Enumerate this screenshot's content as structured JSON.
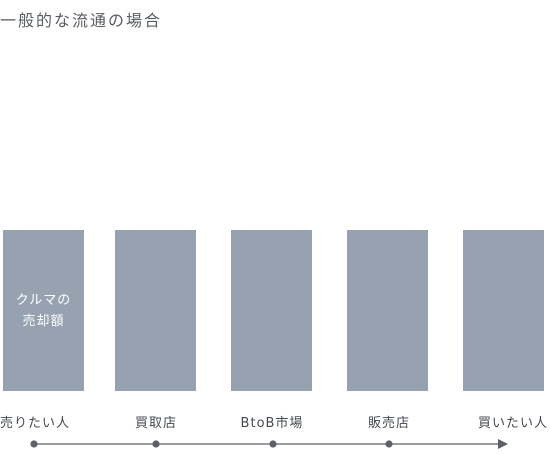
{
  "title": "一般的な流通の場合",
  "bar_label_lines": [
    "クルマの",
    "売却額"
  ],
  "stages": [
    "売りたい人",
    "買取店",
    "BtoB市場",
    "販売店",
    "買いたい人"
  ],
  "colors": {
    "bar": "#97a2b1",
    "line": "#5c6169"
  }
}
